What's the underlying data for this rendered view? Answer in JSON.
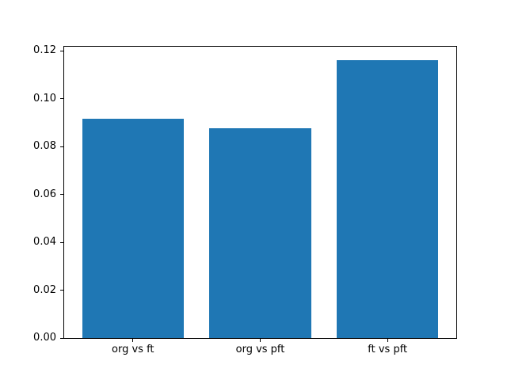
{
  "chart_data": {
    "type": "bar",
    "title": "",
    "xlabel": "",
    "ylabel": "",
    "categories": [
      "org vs ft",
      "org vs pft",
      "ft vs pft"
    ],
    "values": [
      0.0916,
      0.0878,
      0.1161
    ],
    "bar_color": "#1f77b4",
    "background_color": "#ffffff",
    "axes_color": "#000000",
    "ylim": [
      0,
      0.1218
    ],
    "xlim": [
      -0.54,
      2.54
    ],
    "yticks": [
      {
        "value": 0.0,
        "label": "0.00"
      },
      {
        "value": 0.02,
        "label": "0.02"
      },
      {
        "value": 0.04,
        "label": "0.04"
      },
      {
        "value": 0.06,
        "label": "0.06"
      },
      {
        "value": 0.08,
        "label": "0.08"
      },
      {
        "value": 0.1,
        "label": "0.10"
      },
      {
        "value": 0.12,
        "label": "0.12"
      }
    ],
    "grid": false,
    "legend": null
  }
}
